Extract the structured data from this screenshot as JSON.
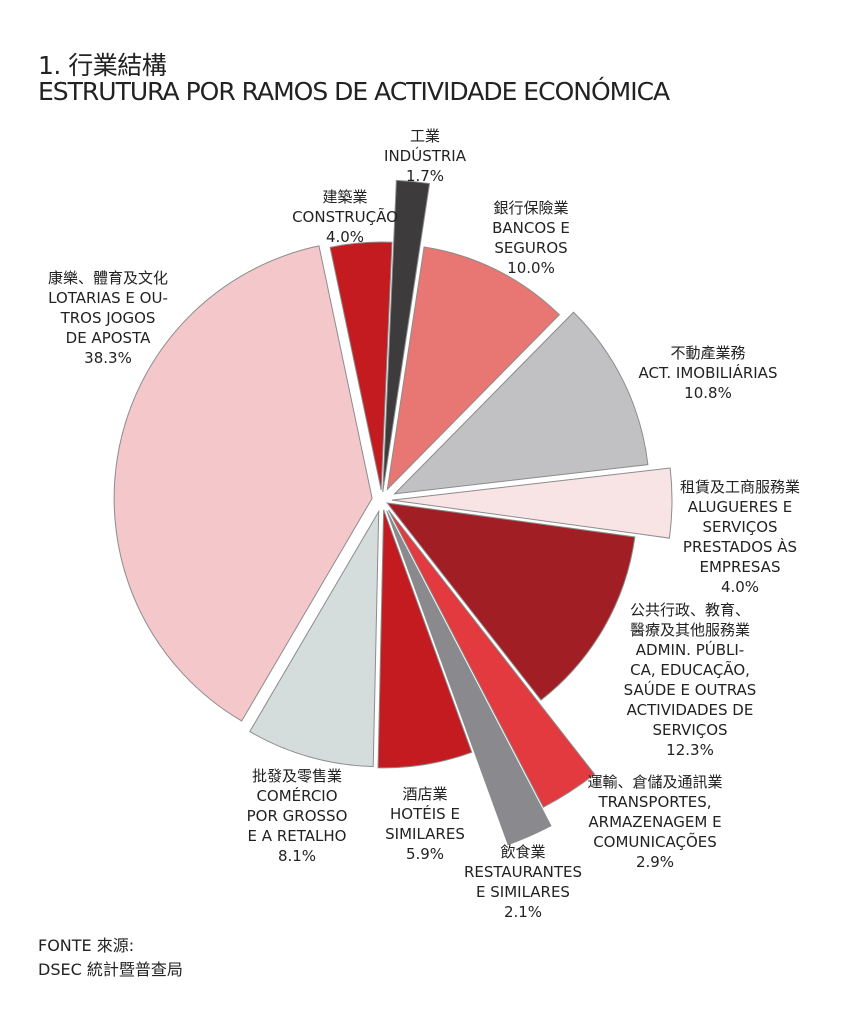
{
  "header": {
    "title_zh": "1. 行業結構",
    "title_pt": "ESTRUTURA POR RAMOS DE ACTIVIDADE ECONÓMICA"
  },
  "chart_data": {
    "type": "pie",
    "title": "1. 行業結構 / ESTRUTURA POR RAMOS DE ACTIVIDADE ECONÓMICA",
    "unit": "%",
    "slices": [
      {
        "key": "industria",
        "zh": "工業",
        "pt": [
          "INDÚSTRIA"
        ],
        "value": 1.7,
        "label": "1.7%",
        "color": "#3d3b3c"
      },
      {
        "key": "bancos",
        "zh": "銀行保險業",
        "pt": [
          "BANCOS E",
          "SEGUROS"
        ],
        "value": 10.0,
        "label": "10.0%",
        "color": "#e87672"
      },
      {
        "key": "imobiliarias",
        "zh": "不動產業務",
        "pt": [
          "ACT. IMOBILIÁRIAS"
        ],
        "value": 10.8,
        "label": "10.8%",
        "color": "#c1c0c2"
      },
      {
        "key": "alugueres",
        "zh": "租賃及工商服務業",
        "pt": [
          "ALUGUERES E",
          "SERVIÇOS",
          "PRESTADOS ÀS",
          "EMPRESAS"
        ],
        "value": 4.0,
        "label": "4.0%",
        "color": "#f8e3e5"
      },
      {
        "key": "admin",
        "zh": "公共行政、教育、",
        "zh2": "醫療及其他服務業",
        "pt": [
          "ADMIN. PÚBLI-",
          "CA, EDUCAÇÃO,",
          "SAÚDE E OUTRAS",
          "ACTIVIDADES DE",
          "SERVIÇOS"
        ],
        "value": 12.3,
        "label": "12.3%",
        "color": "#a11f24"
      },
      {
        "key": "transportes",
        "zh": "運輸、倉儲及通訊業",
        "pt": [
          "TRANSPORTES,",
          "ARMAZENAGEM E",
          "COMUNICAÇÕES"
        ],
        "value": 2.9,
        "label": "2.9%",
        "color": "#e23a3f"
      },
      {
        "key": "restaurantes",
        "zh": "飲食業",
        "pt": [
          "RESTAURANTES",
          "E SIMILARES"
        ],
        "value": 2.1,
        "label": "2.1%",
        "color": "#8a898e"
      },
      {
        "key": "hoteis",
        "zh": "酒店業",
        "pt": [
          "HOTÉIS E",
          "SIMILARES"
        ],
        "value": 5.9,
        "label": "5.9%",
        "color": "#c41b20"
      },
      {
        "key": "comercio",
        "zh": "批發及零售業",
        "pt": [
          "COMÉRCIO",
          "POR GROSSO",
          "E A RETALHO"
        ],
        "value": 8.1,
        "label": "8.1%",
        "color": "#d4dcdc"
      },
      {
        "key": "lotarias",
        "zh": "康樂、體育及文化",
        "pt": [
          "LOTARIAS E OU-",
          "TROS JOGOS",
          "DE APOSTA"
        ],
        "value": 38.3,
        "label": "38.3%",
        "color": "#f4c7cb"
      },
      {
        "key": "construcao",
        "zh": "建築業",
        "pt": [
          "CONSTRUÇÃO"
        ],
        "value": 4.0,
        "label": "4.0%",
        "color": "#c41b20"
      }
    ]
  },
  "source": {
    "line1": "FONTE 來源:",
    "line2": "DSEC 統計暨普查局"
  }
}
